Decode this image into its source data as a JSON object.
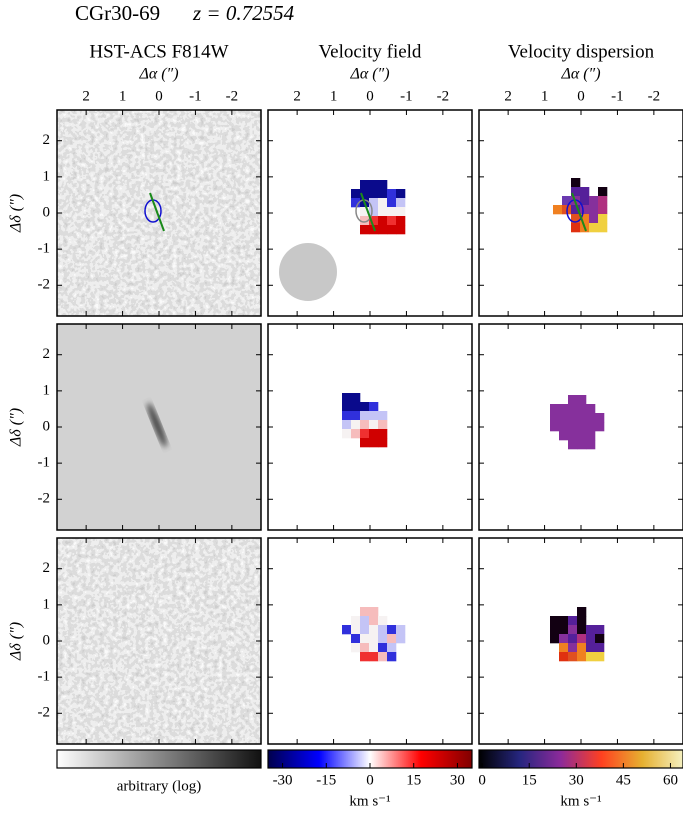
{
  "header": {
    "object": "CGr30-69",
    "redshift": "z = 0.72554"
  },
  "columns": [
    {
      "title": "HST-ACS F814W"
    },
    {
      "title": "Velocity field"
    },
    {
      "title": "Velocity dispersion"
    }
  ],
  "x_axis": {
    "label": "Δα (″)",
    "lim": [
      2.8,
      -2.8
    ],
    "ticks": [
      2,
      1,
      0,
      -1,
      -2
    ]
  },
  "y_axis": {
    "label": "Δδ (″)",
    "lim": [
      -2.85,
      2.85
    ],
    "ticks": [
      -2,
      -1,
      0,
      1,
      2
    ]
  },
  "colorbars": [
    {
      "label": "arbitrary (log)"
    },
    {
      "label": "km s⁻¹",
      "lim": [
        -35,
        35
      ],
      "ticks": [
        -30,
        -15,
        0,
        15,
        30
      ]
    },
    {
      "label": "km s⁻¹",
      "lim": [
        -1,
        64
      ],
      "ticks": [
        0,
        15,
        30,
        45,
        60
      ]
    }
  ]
}
